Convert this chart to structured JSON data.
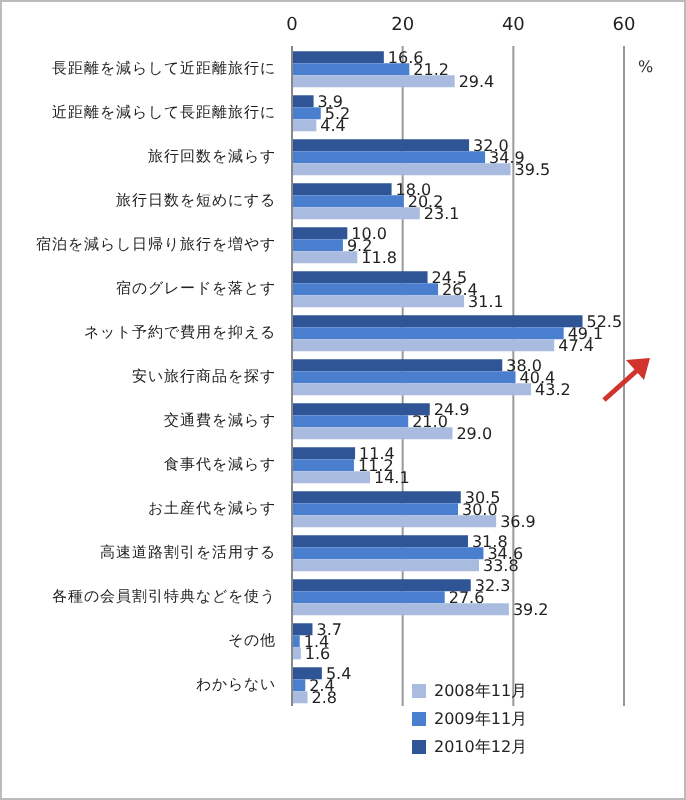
{
  "chart_data": {
    "type": "bar",
    "orientation": "horizontal",
    "xlabel": "%",
    "categories": [
      "長距離を減らして近距離旅行に",
      "近距離を減らして長距離旅行に",
      "旅行回数を減らす",
      "旅行日数を短めにする",
      "宿泊を減らし日帰り旅行を増やす",
      "宿のグレードを落とす",
      "ネット予約で費用を抑える",
      "安い旅行商品を探す",
      "交通費を減らす",
      "食事代を減らす",
      "お土産代を減らす",
      "高速道路割引を活用する",
      "各種の会員割引特典などを使う",
      "その他",
      "わからない"
    ],
    "series": [
      {
        "name": "2010年12月",
        "color": "#2f5597",
        "values": [
          16.6,
          3.9,
          32.0,
          18.0,
          10.0,
          24.5,
          52.5,
          38.0,
          24.9,
          11.4,
          30.5,
          31.8,
          32.3,
          3.7,
          5.4
        ],
        "value_labels": [
          "16.6",
          "3.9",
          "32.0",
          "18.0",
          "10.0",
          "24.5",
          "52.5",
          "38.0",
          "24.9",
          "11.4",
          "30.5",
          "31.8",
          "32.3",
          "3.7",
          "5.4"
        ]
      },
      {
        "name": "2009年11月",
        "color": "#4a7fcf",
        "values": [
          21.2,
          5.2,
          34.9,
          20.2,
          9.2,
          26.4,
          49.1,
          40.4,
          21.0,
          11.2,
          30.0,
          34.6,
          27.6,
          1.4,
          2.4
        ],
        "value_labels": [
          "21.2",
          "5.2",
          "34.9",
          "20.2",
          "9.2",
          "26.4",
          "49.1",
          "40.4",
          "21.0",
          "11.2",
          "30.0",
          "34.6",
          "27.6",
          "1.4",
          "2.4"
        ]
      },
      {
        "name": "2008年11月",
        "color": "#a9bce0",
        "values": [
          29.4,
          4.4,
          39.5,
          23.1,
          11.8,
          31.1,
          47.4,
          43.2,
          29.0,
          14.1,
          36.9,
          33.8,
          39.2,
          1.6,
          2.8
        ],
        "value_labels": [
          "29.4",
          "4.4",
          "39.5",
          "23.1",
          "11.8",
          "31.1",
          "47.4",
          "43.2",
          "29.0",
          "14.1",
          "36.9",
          "33.8",
          "39.2",
          "1.6",
          "2.8"
        ]
      }
    ],
    "xlim": [
      0,
      60
    ],
    "xticks": [
      0,
      20,
      40,
      60
    ],
    "grid": "x",
    "legend": "bottom right"
  }
}
